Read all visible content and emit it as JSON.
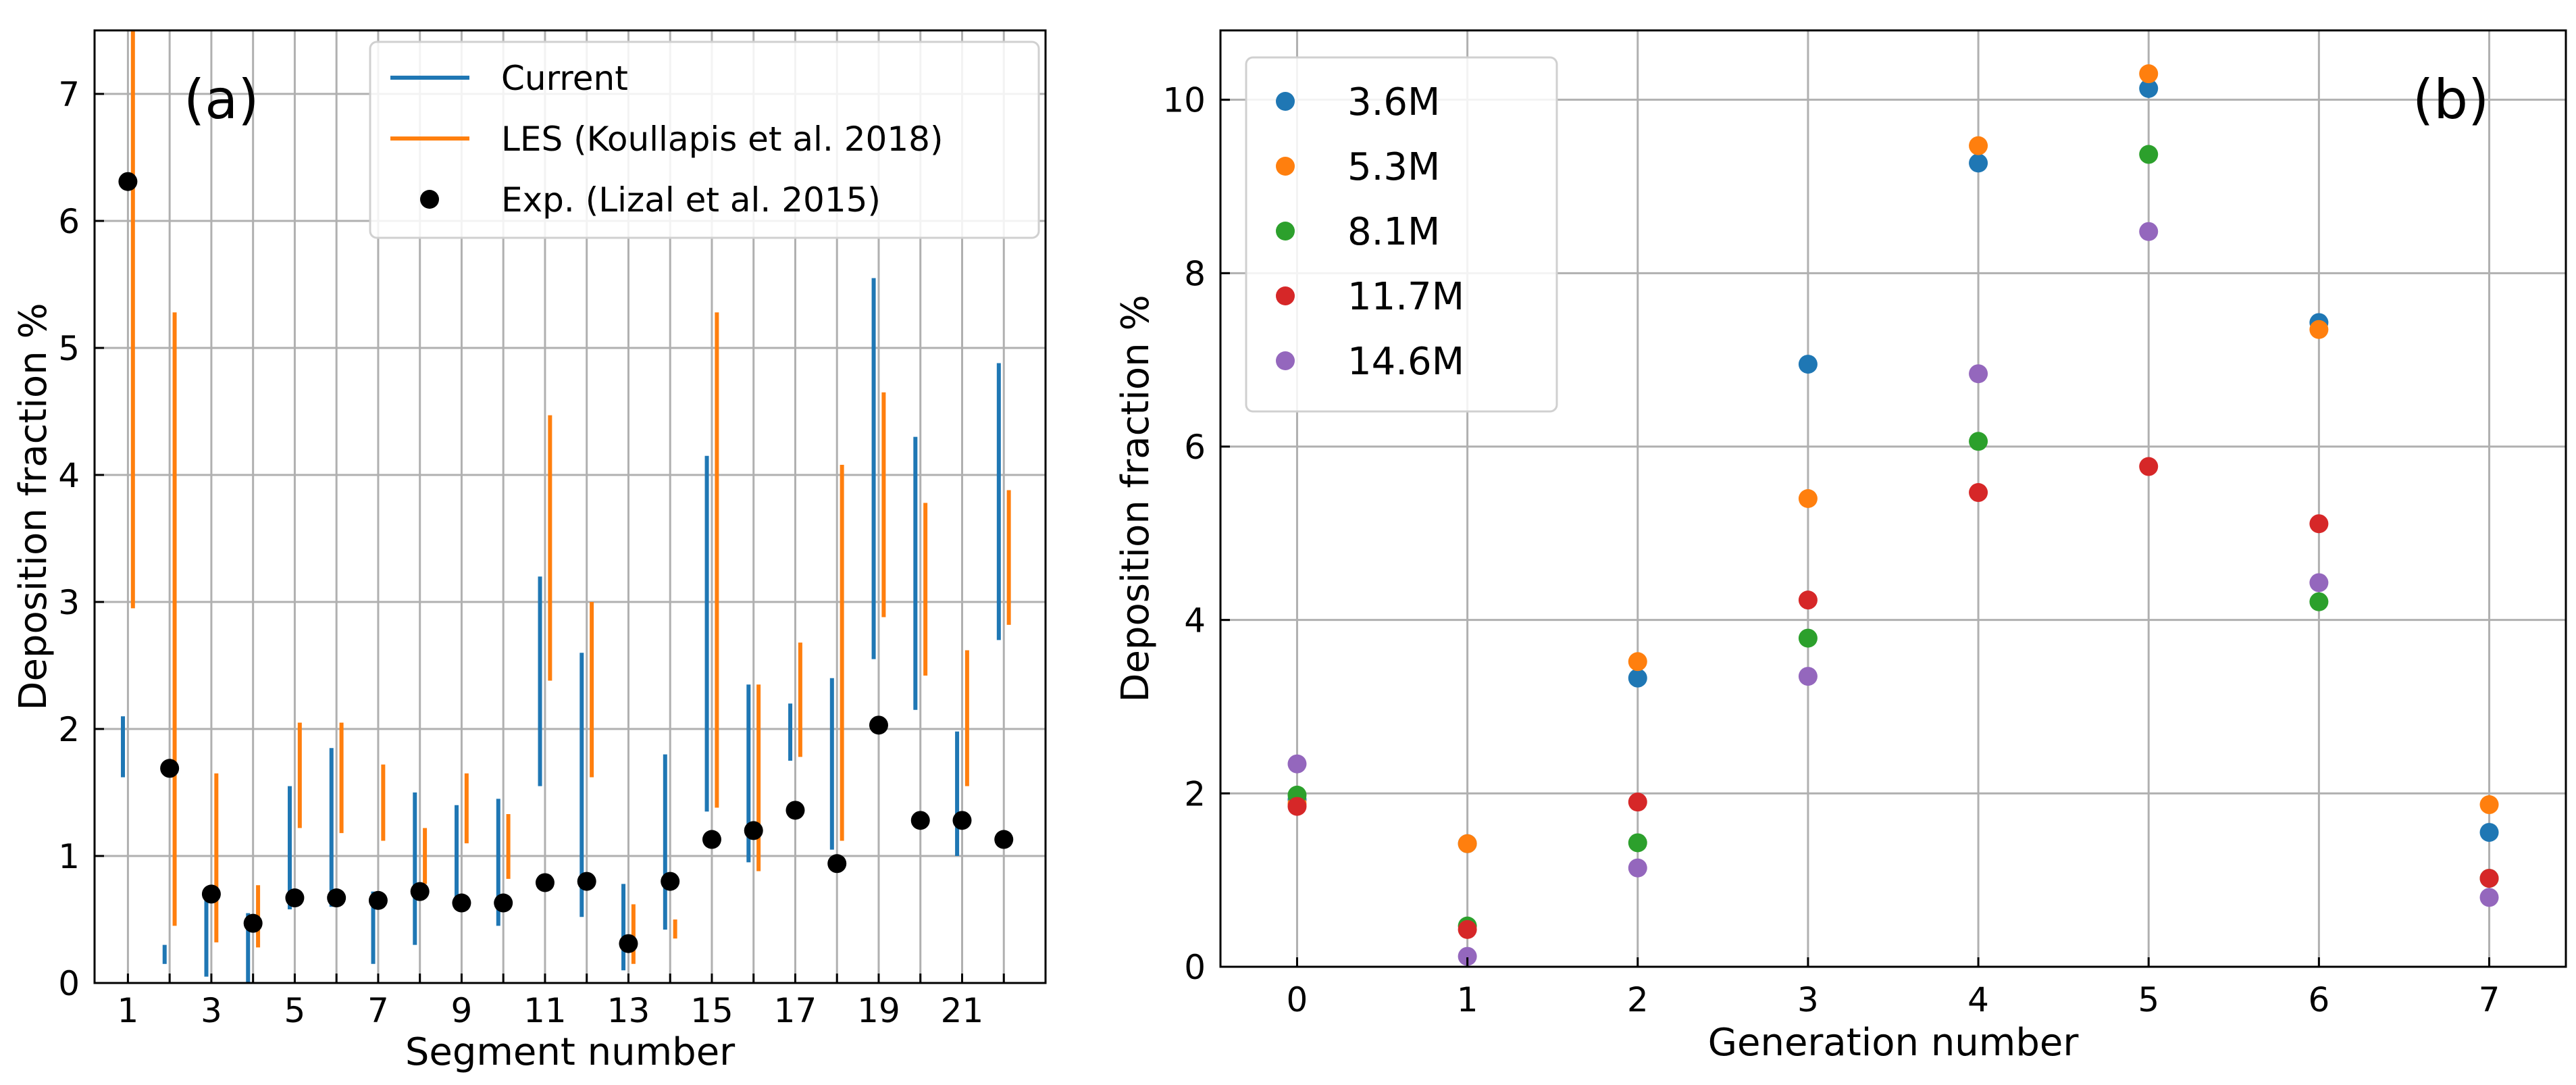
{
  "chart_data": [
    {
      "panel_label": "(a)",
      "type": "range-bar",
      "xlabel": "Segment number",
      "ylabel": "Deposition fraction %",
      "xlim": [
        0.2,
        23.0
      ],
      "ylim": [
        0,
        7.5
      ],
      "xticks": [
        1,
        3,
        5,
        7,
        9,
        11,
        13,
        15,
        17,
        19,
        21
      ],
      "yticks": [
        0,
        1,
        2,
        3,
        4,
        5,
        6,
        7
      ],
      "grid": true,
      "legend": {
        "placement": "top-right",
        "entries": [
          {
            "label": "Current",
            "kind": "line",
            "color": "#1f77b4"
          },
          {
            "label": "LES (Koullapis et al. 2018)",
            "kind": "line",
            "color": "#ff7f0e"
          },
          {
            "label": "Exp. (Lizal et al. 2015)",
            "kind": "dot",
            "color": "#000000"
          }
        ]
      },
      "series": [
        {
          "name": "Current",
          "color": "#1f77b4",
          "kind": "range",
          "x": [
            1,
            2,
            3,
            4,
            5,
            6,
            7,
            8,
            9,
            10,
            11,
            12,
            13,
            14,
            15,
            16,
            17,
            18,
            19,
            20,
            21,
            22
          ],
          "low": [
            1.62,
            0.15,
            0.05,
            0.0,
            0.58,
            0.6,
            0.15,
            0.3,
            0.6,
            0.45,
            1.55,
            0.52,
            0.1,
            0.42,
            1.35,
            0.95,
            1.75,
            1.05,
            2.55,
            2.15,
            1.0,
            2.7
          ],
          "high": [
            2.1,
            0.3,
            0.72,
            0.55,
            1.55,
            1.85,
            0.72,
            1.5,
            1.4,
            1.45,
            3.2,
            2.6,
            0.78,
            1.8,
            4.15,
            2.35,
            2.2,
            2.4,
            5.55,
            4.3,
            1.98,
            4.88
          ]
        },
        {
          "name": "LES (Koullapis et al. 2018)",
          "color": "#ff7f0e",
          "kind": "range",
          "x": [
            1,
            2,
            3,
            4,
            5,
            6,
            7,
            8,
            9,
            10,
            11,
            12,
            13,
            14,
            15,
            16,
            17,
            18,
            19,
            20,
            21,
            22
          ],
          "low": [
            2.95,
            0.45,
            0.32,
            0.28,
            1.22,
            1.18,
            1.12,
            0.78,
            1.1,
            0.82,
            2.38,
            1.62,
            0.15,
            0.35,
            1.38,
            0.88,
            1.78,
            1.12,
            2.88,
            2.42,
            1.55,
            2.82
          ],
          "high": [
            7.5,
            5.28,
            1.65,
            0.77,
            2.05,
            2.05,
            1.72,
            1.22,
            1.65,
            1.33,
            4.47,
            3.0,
            0.62,
            0.5,
            5.28,
            2.35,
            2.68,
            4.08,
            4.65,
            3.78,
            2.62,
            3.88
          ]
        },
        {
          "name": "Exp. (Lizal et al. 2015)",
          "color": "#000000",
          "kind": "scatter",
          "x": [
            1,
            2,
            3,
            4,
            5,
            6,
            7,
            8,
            9,
            10,
            11,
            12,
            13,
            14,
            15,
            16,
            17,
            18,
            19,
            20,
            21,
            22
          ],
          "y": [
            6.31,
            1.69,
            0.7,
            0.47,
            0.67,
            0.67,
            0.65,
            0.72,
            0.63,
            0.63,
            0.79,
            0.8,
            0.31,
            0.8,
            1.13,
            1.2,
            1.36,
            0.94,
            2.03,
            1.28,
            1.28,
            1.13
          ]
        }
      ]
    },
    {
      "panel_label": "(b)",
      "type": "scatter",
      "xlabel": "Generation number",
      "ylabel": "Deposition fraction %",
      "xlim": [
        -0.45,
        7.45
      ],
      "ylim": [
        0,
        10.8
      ],
      "xticks": [
        0,
        1,
        2,
        3,
        4,
        5,
        6,
        7
      ],
      "yticks": [
        0,
        2,
        4,
        6,
        8,
        10
      ],
      "grid": true,
      "legend": {
        "placement": "top-left"
      },
      "series": [
        {
          "name": "3.6M",
          "color": "#1f77b4",
          "x": [
            0,
            1,
            2,
            3,
            4,
            5,
            6,
            7
          ],
          "y": [
            1.93,
            1.42,
            3.33,
            6.95,
            9.27,
            10.13,
            7.43,
            1.55
          ]
        },
        {
          "name": "5.3M",
          "color": "#ff7f0e",
          "x": [
            0,
            1,
            2,
            3,
            4,
            5,
            6,
            7
          ],
          "y": [
            1.88,
            1.42,
            3.52,
            5.4,
            9.47,
            10.3,
            7.35,
            1.87
          ]
        },
        {
          "name": "8.1M",
          "color": "#2ca02c",
          "x": [
            0,
            1,
            2,
            3,
            4,
            5,
            6,
            7
          ],
          "y": [
            1.98,
            0.47,
            1.43,
            3.79,
            6.06,
            9.37,
            4.21,
            1.02
          ]
        },
        {
          "name": "11.7M",
          "color": "#d62728",
          "x": [
            0,
            1,
            2,
            3,
            4,
            5,
            6,
            7
          ],
          "y": [
            1.85,
            0.43,
            1.9,
            4.23,
            5.47,
            5.77,
            5.11,
            1.02
          ]
        },
        {
          "name": "14.6M",
          "color": "#9467bd",
          "x": [
            0,
            1,
            2,
            3,
            4,
            5,
            6,
            7
          ],
          "y": [
            2.34,
            0.12,
            1.14,
            3.35,
            6.84,
            8.48,
            4.43,
            0.8
          ]
        }
      ]
    }
  ]
}
